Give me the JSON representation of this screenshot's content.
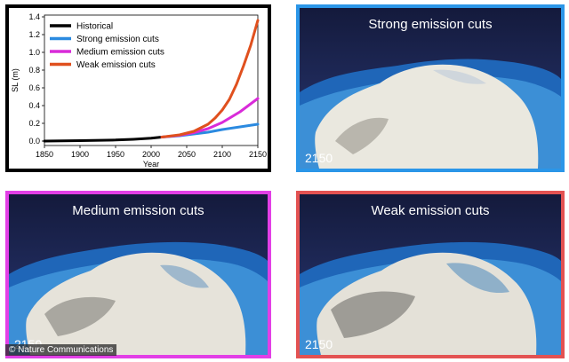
{
  "chart_data": {
    "type": "line",
    "title": "",
    "xlabel": "Year",
    "ylabel": "SL (m)",
    "xlim": [
      1850,
      2150
    ],
    "ylim": [
      -0.05,
      1.42
    ],
    "xticks": [
      1850,
      1900,
      1950,
      2000,
      2050,
      2100,
      2150
    ],
    "yticks": [
      0.0,
      0.2,
      0.4,
      0.6,
      0.8,
      1.0,
      1.2,
      1.4
    ],
    "ytick_labels": [
      "0.0",
      "0.2",
      "0.4",
      "0.6",
      "0.8",
      "1.0",
      "1.2",
      "1.4"
    ],
    "legend_position": "top-left",
    "series": [
      {
        "name": "Historical",
        "color": "#000000",
        "x": [
          1850,
          1900,
          1950,
          1975,
          2000,
          2015
        ],
        "y": [
          0.0,
          0.005,
          0.012,
          0.02,
          0.032,
          0.045
        ]
      },
      {
        "name": "Strong emission cuts",
        "color": "#2b8ae0",
        "x": [
          2015,
          2040,
          2060,
          2080,
          2100,
          2125,
          2150
        ],
        "y": [
          0.045,
          0.06,
          0.08,
          0.1,
          0.13,
          0.16,
          0.19
        ]
      },
      {
        "name": "Medium emission cuts",
        "color": "#d92bd9",
        "x": [
          2015,
          2040,
          2060,
          2080,
          2100,
          2125,
          2150
        ],
        "y": [
          0.045,
          0.065,
          0.095,
          0.14,
          0.21,
          0.33,
          0.48
        ]
      },
      {
        "name": "Weak emission cuts",
        "color": "#e0501e",
        "x": [
          2015,
          2040,
          2060,
          2080,
          2090,
          2100,
          2110,
          2120,
          2130,
          2140,
          2150
        ],
        "y": [
          0.045,
          0.07,
          0.11,
          0.19,
          0.26,
          0.35,
          0.47,
          0.64,
          0.85,
          1.08,
          1.36
        ]
      }
    ]
  },
  "panels": {
    "strong": {
      "title": "Strong emission cuts",
      "year": "2150",
      "border_color": "#2b96e8"
    },
    "medium": {
      "title": "Medium emission cuts",
      "year": "2150",
      "border_color": "#e23fe6"
    },
    "weak": {
      "title": "Weak emission cuts",
      "year": "2150",
      "border_color": "#e35252"
    }
  },
  "credit": "© Nature Communications"
}
